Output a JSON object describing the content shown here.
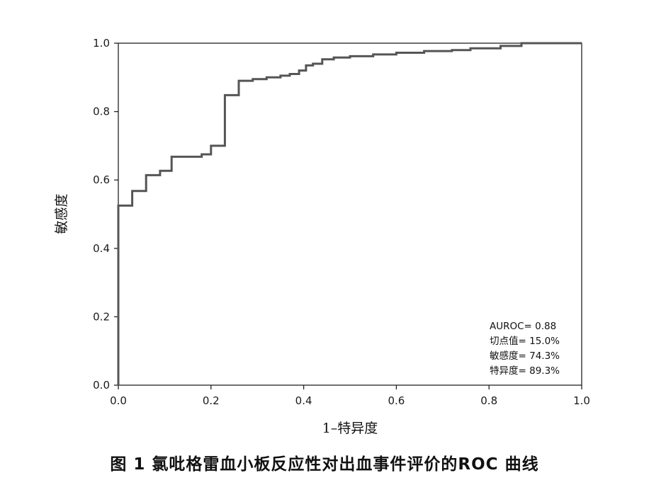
{
  "chart_data": {
    "type": "line",
    "xlabel": "1–特异度",
    "ylabel": "敏感度",
    "xlim": [
      0,
      1
    ],
    "ylim": [
      0,
      1
    ],
    "x_ticks": [
      "0.0",
      "0.2",
      "0.4",
      "0.6",
      "0.8",
      "1.0"
    ],
    "y_ticks": [
      "0.0",
      "0.2",
      "0.4",
      "0.6",
      "0.8",
      "1.0"
    ],
    "grid": false,
    "series": [
      {
        "x": [
          0,
          0,
          0.03,
          0.03,
          0.06,
          0.06,
          0.09,
          0.09,
          0.115,
          0.115,
          0.18,
          0.18,
          0.2,
          0.2,
          0.23,
          0.23,
          0.26,
          0.26,
          0.29,
          0.29,
          0.32,
          0.32,
          0.35,
          0.35,
          0.37,
          0.37,
          0.39,
          0.39,
          0.405,
          0.405,
          0.42,
          0.42,
          0.44,
          0.44,
          0.465,
          0.465,
          0.5,
          0.5,
          0.55,
          0.55,
          0.6,
          0.6,
          0.66,
          0.66,
          0.72,
          0.72,
          0.76,
          0.76,
          0.825,
          0.825,
          0.87,
          0.87,
          1.0
        ],
        "y": [
          0,
          0.525,
          0.525,
          0.568,
          0.568,
          0.614,
          0.614,
          0.627,
          0.627,
          0.668,
          0.668,
          0.675,
          0.675,
          0.7,
          0.7,
          0.848,
          0.848,
          0.89,
          0.89,
          0.895,
          0.895,
          0.9,
          0.9,
          0.905,
          0.905,
          0.91,
          0.91,
          0.92,
          0.92,
          0.935,
          0.935,
          0.94,
          0.94,
          0.953,
          0.953,
          0.958,
          0.958,
          0.962,
          0.962,
          0.967,
          0.967,
          0.972,
          0.972,
          0.977,
          0.977,
          0.98,
          0.98,
          0.985,
          0.985,
          0.992,
          0.992,
          1.0,
          1.0
        ],
        "color": "#555555"
      }
    ],
    "annotations": [
      "AUROC= 0.88",
      "切点值= 15.0%",
      "敏感度= 74.3%",
      "特异度= 89.3%"
    ]
  },
  "caption": "图 1   氯吡格雷血小板反应性对出血事件评价的ROC 曲线"
}
